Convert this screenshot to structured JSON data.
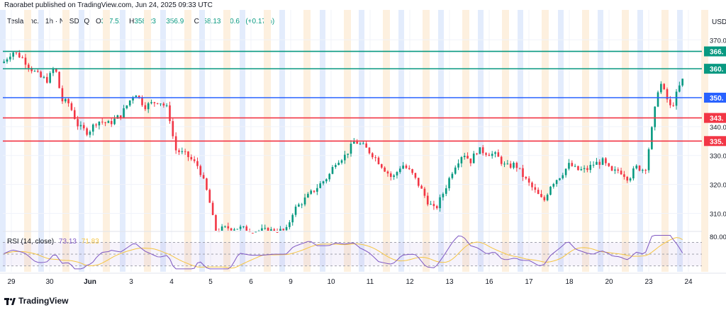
{
  "header": {
    "publisher_text": "Raorabet published on TradingView.com, Jun 24, 2025 09:33 UTC",
    "symbol": "Tesla, Inc. · 1h · NASDAQ",
    "o_label": "O",
    "o_value": "357.51",
    "h_label": "H",
    "h_value": "358.23",
    "l_label": "L",
    "l_value": "356.91",
    "c_label": "C",
    "c_value": "358.13",
    "change": "+0.60 (+0.17%)",
    "currency": "USD"
  },
  "footer": {
    "brand": "TradingView",
    "logo_icon": "tradingview-logo-icon"
  },
  "colors": {
    "up": "#089981",
    "down": "#f23645",
    "grid": "#f0f3fa",
    "session_blue": "#e3ecfc",
    "session_orange": "#fdf0df",
    "green_line": "#089981",
    "blue_line": "#2962ff",
    "red_line": "#f23645",
    "rsi_line": "#7e57c2",
    "rsi_ma": "#f5c542"
  },
  "chart_data": [
    {
      "type": "candlestick",
      "title": "Tesla, Inc. · 1h · NASDAQ",
      "ylim": [
        304,
        373
      ],
      "y_ticks": [
        "370.00",
        "340.00",
        "330.00",
        "320.00",
        "310.00"
      ],
      "x_ticks": [
        "29",
        "30",
        "Jun",
        "3",
        "4",
        "5",
        "6",
        "9",
        "10",
        "11",
        "12",
        "13",
        "16",
        "17",
        "18",
        "20",
        "23",
        "24"
      ],
      "horizontal_levels": [
        {
          "label": "366.",
          "value": 366.0,
          "color": "#089981"
        },
        {
          "label": "360.",
          "value": 360.0,
          "color": "#089981"
        },
        {
          "label": "350.",
          "value": 350.0,
          "color": "#2962ff"
        },
        {
          "label": "343.",
          "value": 343.0,
          "color": "#f23645"
        },
        {
          "label": "335.",
          "value": 335.0,
          "color": "#f23645"
        }
      ],
      "close_path": [
        [
          0,
          362
        ],
        [
          0.4,
          366
        ],
        [
          0.8,
          364
        ],
        [
          1.2,
          360
        ],
        [
          1.6,
          357
        ],
        [
          1.9,
          356
        ],
        [
          2.2,
          361
        ],
        [
          2.5,
          349
        ],
        [
          2.8,
          348
        ],
        [
          3.2,
          340
        ],
        [
          3.6,
          338
        ],
        [
          4.0,
          342
        ],
        [
          4.5,
          341
        ],
        [
          5.0,
          344
        ],
        [
          5.6,
          352
        ],
        [
          6.0,
          347
        ],
        [
          6.6,
          349
        ],
        [
          7.0,
          346
        ],
        [
          7.3,
          332
        ],
        [
          7.8,
          330
        ],
        [
          8.3,
          326
        ],
        [
          8.7,
          316
        ],
        [
          9.0,
          304
        ],
        [
          9.5,
          305
        ],
        [
          10.0,
          305
        ],
        [
          10.5,
          304
        ],
        [
          12.0,
          304
        ],
        [
          12.3,
          311
        ],
        [
          12.8,
          315
        ],
        [
          13.3,
          319
        ],
        [
          13.8,
          323
        ],
        [
          14.1,
          328
        ],
        [
          14.5,
          330
        ],
        [
          14.9,
          335
        ],
        [
          15.3,
          333
        ],
        [
          15.7,
          330
        ],
        [
          16.1,
          326
        ],
        [
          16.5,
          322
        ],
        [
          16.9,
          327
        ],
        [
          17.3,
          324
        ],
        [
          17.6,
          320
        ],
        [
          18.0,
          314
        ],
        [
          18.3,
          311
        ],
        [
          18.7,
          318
        ],
        [
          19.1,
          326
        ],
        [
          19.5,
          331
        ],
        [
          19.8,
          328
        ],
        [
          20.1,
          332
        ],
        [
          20.5,
          331
        ],
        [
          20.9,
          330
        ],
        [
          21.3,
          326
        ],
        [
          21.7,
          327
        ],
        [
          22.1,
          322
        ],
        [
          22.5,
          318
        ],
        [
          22.9,
          314
        ],
        [
          23.2,
          320
        ],
        [
          23.6,
          323
        ],
        [
          24.0,
          327
        ],
        [
          24.3,
          325
        ],
        [
          24.7,
          325
        ],
        [
          25.0,
          327
        ],
        [
          25.4,
          328
        ],
        [
          25.8,
          324
        ],
        [
          26.1,
          325
        ],
        [
          26.5,
          322
        ],
        [
          26.8,
          326
        ],
        [
          27.2,
          325
        ],
        [
          27.5,
          340
        ],
        [
          27.8,
          356
        ],
        [
          28.0,
          352
        ],
        [
          28.3,
          346
        ],
        [
          28.6,
          353
        ],
        [
          28.9,
          358
        ]
      ],
      "x_range": [
        0,
        29
      ]
    },
    {
      "type": "line",
      "title": "RSI (14, close)",
      "series": [
        {
          "name": "RSI",
          "value_label": "73.13"
        },
        {
          "name": "MA",
          "value_label": "71.83"
        }
      ],
      "ylim": [
        20,
        85
      ],
      "y_ticks": [
        "80.00"
      ],
      "bands": [
        70,
        50,
        30
      ]
    }
  ]
}
